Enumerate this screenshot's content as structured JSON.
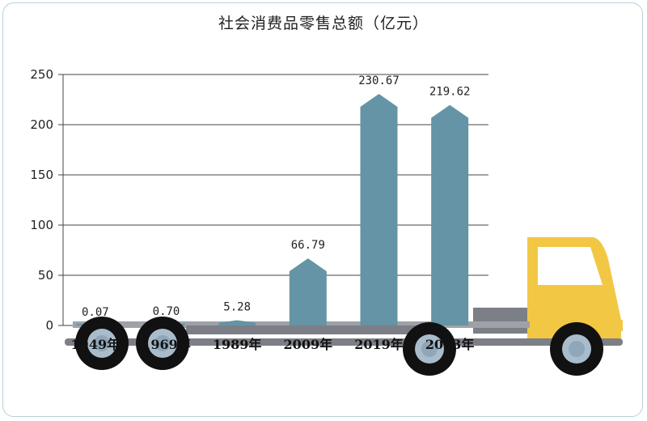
{
  "chart_data": {
    "type": "bar",
    "title": "社会消费品零售总额（亿元）",
    "categories": [
      "1949年",
      "1969年",
      "1989年",
      "2009年",
      "2019年",
      "2023年"
    ],
    "values": [
      0.07,
      0.7,
      5.28,
      66.79,
      230.67,
      219.62
    ],
    "value_labels": [
      "0.07",
      "0.70",
      "5.28",
      "66.79",
      "230.67",
      "219.62"
    ],
    "y_ticks": [
      "0",
      "50",
      "100",
      "150",
      "200",
      "250"
    ],
    "ylim": [
      0,
      250
    ],
    "grid": true,
    "colors": {
      "bar": "#6494a5",
      "truck_cab": "#f2c744",
      "chassis": "#7c7f86",
      "wheel": "#111111",
      "hub": "#a9bccc"
    }
  }
}
